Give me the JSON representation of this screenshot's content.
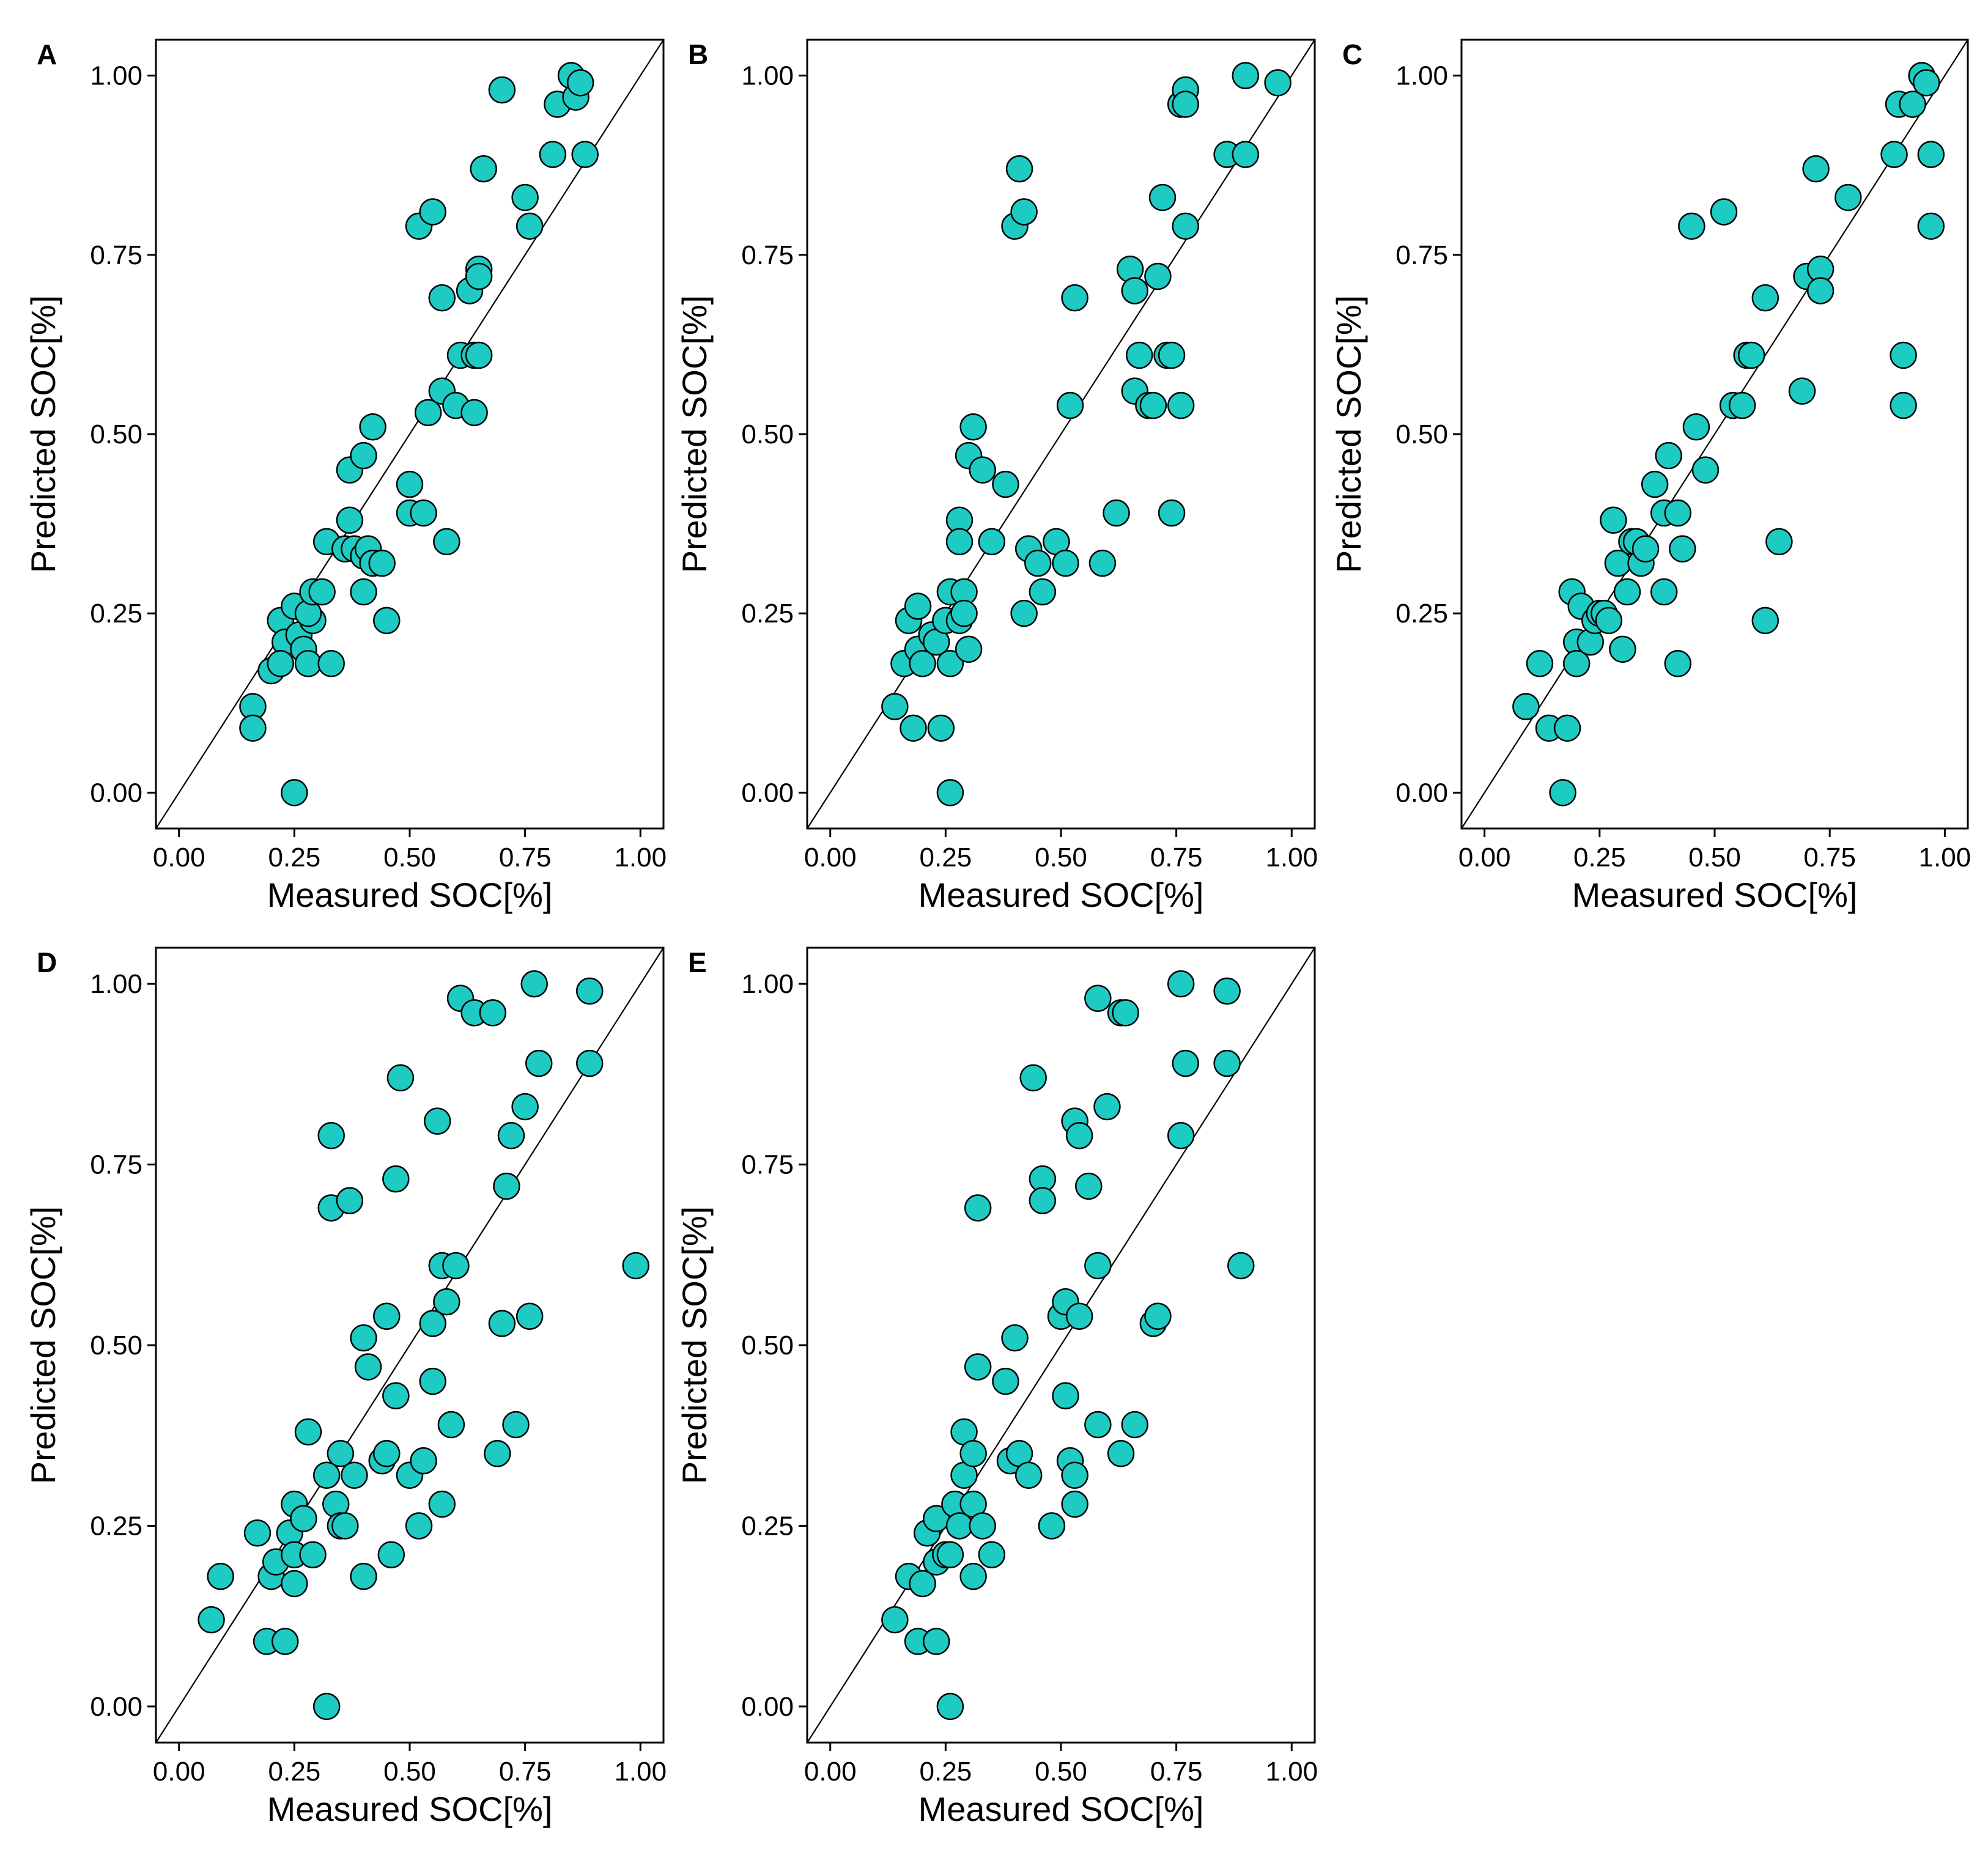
{
  "figure": {
    "point_fill": "#1ECBC3",
    "point_stroke": "#000000",
    "background": "#FFFFFF"
  },
  "chart_data": [
    {
      "type": "scatter",
      "panel_label": "A",
      "xlabel": "Measured SOC[%]",
      "ylabel": "Predicted SOC[%]",
      "xlim": [
        -0.05,
        1.05
      ],
      "ylim": [
        -0.05,
        1.05
      ],
      "xticks": [
        0.0,
        0.25,
        0.5,
        0.75,
        1.0
      ],
      "yticks": [
        0.0,
        0.25,
        0.5,
        0.75,
        1.0
      ],
      "xtick_labels": [
        "0.00",
        "0.25",
        "0.50",
        "0.75",
        "1.00"
      ],
      "ytick_labels": [
        "0.00",
        "0.25",
        "0.50",
        "0.75",
        "1.00"
      ],
      "reference_line": "y = x",
      "points": [
        [
          0.16,
          0.12
        ],
        [
          0.16,
          0.09
        ],
        [
          0.25,
          0.0
        ],
        [
          0.2,
          0.17
        ],
        [
          0.22,
          0.24
        ],
        [
          0.23,
          0.21
        ],
        [
          0.22,
          0.18
        ],
        [
          0.25,
          0.26
        ],
        [
          0.26,
          0.22
        ],
        [
          0.27,
          0.2
        ],
        [
          0.28,
          0.18
        ],
        [
          0.29,
          0.24
        ],
        [
          0.28,
          0.25
        ],
        [
          0.29,
          0.28
        ],
        [
          0.31,
          0.28
        ],
        [
          0.32,
          0.35
        ],
        [
          0.33,
          0.18
        ],
        [
          0.36,
          0.34
        ],
        [
          0.37,
          0.38
        ],
        [
          0.38,
          0.34
        ],
        [
          0.37,
          0.45
        ],
        [
          0.4,
          0.47
        ],
        [
          0.4,
          0.33
        ],
        [
          0.4,
          0.28
        ],
        [
          0.41,
          0.34
        ],
        [
          0.42,
          0.32
        ],
        [
          0.42,
          0.51
        ],
        [
          0.44,
          0.32
        ],
        [
          0.45,
          0.24
        ],
        [
          0.5,
          0.43
        ],
        [
          0.5,
          0.39
        ],
        [
          0.53,
          0.39
        ],
        [
          0.54,
          0.53
        ],
        [
          0.52,
          0.79
        ],
        [
          0.55,
          0.81
        ],
        [
          0.57,
          0.56
        ],
        [
          0.57,
          0.69
        ],
        [
          0.58,
          0.35
        ],
        [
          0.6,
          0.54
        ],
        [
          0.61,
          0.61
        ],
        [
          0.63,
          0.7
        ],
        [
          0.64,
          0.53
        ],
        [
          0.64,
          0.61
        ],
        [
          0.65,
          0.61
        ],
        [
          0.65,
          0.73
        ],
        [
          0.65,
          0.72
        ],
        [
          0.66,
          0.87
        ],
        [
          0.7,
          0.98
        ],
        [
          0.75,
          0.83
        ],
        [
          0.76,
          0.79
        ],
        [
          0.81,
          0.89
        ],
        [
          0.82,
          0.96
        ],
        [
          0.85,
          1.0
        ],
        [
          0.86,
          0.97
        ],
        [
          0.87,
          0.99
        ],
        [
          0.88,
          0.89
        ]
      ]
    },
    {
      "type": "scatter",
      "panel_label": "B",
      "xlabel": "Measured SOC[%]",
      "ylabel": "Predicted SOC[%]",
      "xlim": [
        -0.05,
        1.05
      ],
      "ylim": [
        -0.05,
        1.05
      ],
      "xticks": [
        0.0,
        0.25,
        0.5,
        0.75,
        1.0
      ],
      "yticks": [
        0.0,
        0.25,
        0.5,
        0.75,
        1.0
      ],
      "xtick_labels": [
        "0.00",
        "0.25",
        "0.50",
        "0.75",
        "1.00"
      ],
      "ytick_labels": [
        "0.00",
        "0.25",
        "0.50",
        "0.75",
        "1.00"
      ],
      "reference_line": "y = x",
      "points": [
        [
          0.14,
          0.12
        ],
        [
          0.16,
          0.18
        ],
        [
          0.17,
          0.24
        ],
        [
          0.18,
          0.09
        ],
        [
          0.19,
          0.26
        ],
        [
          0.19,
          0.2
        ],
        [
          0.2,
          0.18
        ],
        [
          0.22,
          0.22
        ],
        [
          0.23,
          0.21
        ],
        [
          0.24,
          0.09
        ],
        [
          0.25,
          0.24
        ],
        [
          0.26,
          0.28
        ],
        [
          0.26,
          0.18
        ],
        [
          0.26,
          0.0
        ],
        [
          0.28,
          0.38
        ],
        [
          0.28,
          0.35
        ],
        [
          0.28,
          0.24
        ],
        [
          0.29,
          0.28
        ],
        [
          0.29,
          0.25
        ],
        [
          0.3,
          0.2
        ],
        [
          0.3,
          0.47
        ],
        [
          0.31,
          0.51
        ],
        [
          0.33,
          0.45
        ],
        [
          0.35,
          0.35
        ],
        [
          0.38,
          0.43
        ],
        [
          0.4,
          0.79
        ],
        [
          0.41,
          0.87
        ],
        [
          0.42,
          0.81
        ],
        [
          0.42,
          0.25
        ],
        [
          0.43,
          0.34
        ],
        [
          0.45,
          0.32
        ],
        [
          0.46,
          0.28
        ],
        [
          0.49,
          0.35
        ],
        [
          0.51,
          0.32
        ],
        [
          0.52,
          0.54
        ],
        [
          0.53,
          0.69
        ],
        [
          0.59,
          0.32
        ],
        [
          0.62,
          0.39
        ],
        [
          0.65,
          0.73
        ],
        [
          0.66,
          0.7
        ],
        [
          0.66,
          0.56
        ],
        [
          0.67,
          0.61
        ],
        [
          0.69,
          0.54
        ],
        [
          0.7,
          0.54
        ],
        [
          0.71,
          0.72
        ],
        [
          0.72,
          0.83
        ],
        [
          0.73,
          0.61
        ],
        [
          0.74,
          0.61
        ],
        [
          0.74,
          0.39
        ],
        [
          0.76,
          0.54
        ],
        [
          0.76,
          0.96
        ],
        [
          0.77,
          0.98
        ],
        [
          0.77,
          0.79
        ],
        [
          0.86,
          0.89
        ],
        [
          0.9,
          1.0
        ],
        [
          0.9,
          0.89
        ],
        [
          0.97,
          0.99
        ],
        [
          0.77,
          0.96
        ]
      ]
    },
    {
      "type": "scatter",
      "panel_label": "C",
      "xlabel": "Measured SOC[%]",
      "ylabel": "Predicted SOC[%]",
      "xlim": [
        -0.05,
        1.05
      ],
      "ylim": [
        -0.05,
        1.05
      ],
      "xticks": [
        0.0,
        0.25,
        0.5,
        0.75,
        1.0
      ],
      "yticks": [
        0.0,
        0.25,
        0.5,
        0.75,
        1.0
      ],
      "xtick_labels": [
        "0.00",
        "0.25",
        "0.50",
        "0.75",
        "1.00"
      ],
      "ytick_labels": [
        "0.00",
        "0.25",
        "0.50",
        "0.75",
        "1.00"
      ],
      "reference_line": "y = x",
      "points": [
        [
          0.09,
          0.12
        ],
        [
          0.12,
          0.18
        ],
        [
          0.14,
          0.09
        ],
        [
          0.17,
          0.0
        ],
        [
          0.18,
          0.09
        ],
        [
          0.19,
          0.28
        ],
        [
          0.2,
          0.21
        ],
        [
          0.2,
          0.18
        ],
        [
          0.21,
          0.26
        ],
        [
          0.23,
          0.21
        ],
        [
          0.24,
          0.24
        ],
        [
          0.25,
          0.25
        ],
        [
          0.26,
          0.25
        ],
        [
          0.27,
          0.24
        ],
        [
          0.28,
          0.38
        ],
        [
          0.29,
          0.32
        ],
        [
          0.3,
          0.2
        ],
        [
          0.31,
          0.28
        ],
        [
          0.32,
          0.35
        ],
        [
          0.33,
          0.35
        ],
        [
          0.34,
          0.32
        ],
        [
          0.35,
          0.34
        ],
        [
          0.37,
          0.43
        ],
        [
          0.39,
          0.39
        ],
        [
          0.39,
          0.28
        ],
        [
          0.4,
          0.47
        ],
        [
          0.42,
          0.39
        ],
        [
          0.42,
          0.18
        ],
        [
          0.43,
          0.34
        ],
        [
          0.45,
          0.79
        ],
        [
          0.46,
          0.51
        ],
        [
          0.48,
          0.45
        ],
        [
          0.52,
          0.81
        ],
        [
          0.54,
          0.54
        ],
        [
          0.56,
          0.54
        ],
        [
          0.57,
          0.61
        ],
        [
          0.58,
          0.61
        ],
        [
          0.61,
          0.24
        ],
        [
          0.61,
          0.69
        ],
        [
          0.64,
          0.35
        ],
        [
          0.69,
          0.56
        ],
        [
          0.7,
          0.72
        ],
        [
          0.72,
          0.87
        ],
        [
          0.73,
          0.73
        ],
        [
          0.73,
          0.7
        ],
        [
          0.79,
          0.83
        ],
        [
          0.89,
          0.89
        ],
        [
          0.9,
          0.96
        ],
        [
          0.91,
          0.54
        ],
        [
          0.91,
          0.61
        ],
        [
          0.93,
          0.96
        ],
        [
          0.95,
          1.0
        ],
        [
          0.96,
          0.99
        ],
        [
          0.97,
          0.89
        ],
        [
          0.97,
          0.79
        ]
      ]
    },
    {
      "type": "scatter",
      "panel_label": "D",
      "xlabel": "Measured SOC[%]",
      "ylabel": "Predicted SOC[%]",
      "xlim": [
        -0.05,
        1.05
      ],
      "ylim": [
        -0.05,
        1.05
      ],
      "xticks": [
        0.0,
        0.25,
        0.5,
        0.75,
        1.0
      ],
      "yticks": [
        0.0,
        0.25,
        0.5,
        0.75,
        1.0
      ],
      "xtick_labels": [
        "0.00",
        "0.25",
        "0.50",
        "0.75",
        "1.00"
      ],
      "ytick_labels": [
        "0.00",
        "0.25",
        "0.50",
        "0.75",
        "1.00"
      ],
      "reference_line": "y = x",
      "points": [
        [
          0.07,
          0.12
        ],
        [
          0.09,
          0.18
        ],
        [
          0.17,
          0.24
        ],
        [
          0.19,
          0.09
        ],
        [
          0.2,
          0.18
        ],
        [
          0.21,
          0.2
        ],
        [
          0.23,
          0.09
        ],
        [
          0.24,
          0.24
        ],
        [
          0.25,
          0.21
        ],
        [
          0.25,
          0.28
        ],
        [
          0.25,
          0.17
        ],
        [
          0.27,
          0.26
        ],
        [
          0.28,
          0.38
        ],
        [
          0.29,
          0.21
        ],
        [
          0.32,
          0.0
        ],
        [
          0.32,
          0.32
        ],
        [
          0.33,
          0.79
        ],
        [
          0.33,
          0.69
        ],
        [
          0.34,
          0.28
        ],
        [
          0.35,
          0.35
        ],
        [
          0.35,
          0.25
        ],
        [
          0.36,
          0.25
        ],
        [
          0.37,
          0.7
        ],
        [
          0.38,
          0.32
        ],
        [
          0.4,
          0.51
        ],
        [
          0.41,
          0.47
        ],
        [
          0.4,
          0.18
        ],
        [
          0.44,
          0.34
        ],
        [
          0.45,
          0.35
        ],
        [
          0.45,
          0.54
        ],
        [
          0.46,
          0.21
        ],
        [
          0.47,
          0.43
        ],
        [
          0.47,
          0.73
        ],
        [
          0.48,
          0.87
        ],
        [
          0.5,
          0.32
        ],
        [
          0.52,
          0.25
        ],
        [
          0.53,
          0.34
        ],
        [
          0.55,
          0.53
        ],
        [
          0.55,
          0.45
        ],
        [
          0.56,
          0.81
        ],
        [
          0.57,
          0.61
        ],
        [
          0.57,
          0.28
        ],
        [
          0.58,
          0.56
        ],
        [
          0.59,
          0.39
        ],
        [
          0.6,
          0.61
        ],
        [
          0.61,
          0.98
        ],
        [
          0.64,
          0.96
        ],
        [
          0.68,
          0.96
        ],
        [
          0.69,
          0.35
        ],
        [
          0.7,
          0.53
        ],
        [
          0.71,
          0.72
        ],
        [
          0.72,
          0.79
        ],
        [
          0.73,
          0.39
        ],
        [
          0.75,
          0.83
        ],
        [
          0.76,
          0.54
        ],
        [
          0.77,
          1.0
        ],
        [
          0.78,
          0.89
        ],
        [
          0.89,
          0.99
        ],
        [
          0.89,
          0.89
        ],
        [
          0.99,
          0.61
        ]
      ]
    },
    {
      "type": "scatter",
      "panel_label": "E",
      "xlabel": "Measured SOC[%]",
      "ylabel": "Predicted SOC[%]",
      "xlim": [
        -0.05,
        1.05
      ],
      "ylim": [
        -0.05,
        1.05
      ],
      "xticks": [
        0.0,
        0.25,
        0.5,
        0.75,
        1.0
      ],
      "yticks": [
        0.0,
        0.25,
        0.5,
        0.75,
        1.0
      ],
      "xtick_labels": [
        "0.00",
        "0.25",
        "0.50",
        "0.75",
        "1.00"
      ],
      "ytick_labels": [
        "0.00",
        "0.25",
        "0.50",
        "0.75",
        "1.00"
      ],
      "reference_line": "y = x",
      "points": [
        [
          0.14,
          0.12
        ],
        [
          0.17,
          0.18
        ],
        [
          0.19,
          0.09
        ],
        [
          0.2,
          0.17
        ],
        [
          0.21,
          0.24
        ],
        [
          0.23,
          0.09
        ],
        [
          0.23,
          0.2
        ],
        [
          0.23,
          0.26
        ],
        [
          0.25,
          0.21
        ],
        [
          0.26,
          0.21
        ],
        [
          0.26,
          0.0
        ],
        [
          0.27,
          0.28
        ],
        [
          0.28,
          0.25
        ],
        [
          0.29,
          0.38
        ],
        [
          0.29,
          0.32
        ],
        [
          0.31,
          0.35
        ],
        [
          0.31,
          0.18
        ],
        [
          0.31,
          0.28
        ],
        [
          0.32,
          0.47
        ],
        [
          0.32,
          0.69
        ],
        [
          0.33,
          0.25
        ],
        [
          0.35,
          0.21
        ],
        [
          0.38,
          0.45
        ],
        [
          0.39,
          0.34
        ],
        [
          0.4,
          0.51
        ],
        [
          0.41,
          0.35
        ],
        [
          0.43,
          0.32
        ],
        [
          0.44,
          0.87
        ],
        [
          0.46,
          0.73
        ],
        [
          0.46,
          0.7
        ],
        [
          0.48,
          0.25
        ],
        [
          0.5,
          0.54
        ],
        [
          0.51,
          0.56
        ],
        [
          0.51,
          0.43
        ],
        [
          0.52,
          0.34
        ],
        [
          0.53,
          0.32
        ],
        [
          0.53,
          0.28
        ],
        [
          0.53,
          0.81
        ],
        [
          0.54,
          0.79
        ],
        [
          0.54,
          0.54
        ],
        [
          0.56,
          0.72
        ],
        [
          0.58,
          0.61
        ],
        [
          0.58,
          0.39
        ],
        [
          0.58,
          0.98
        ],
        [
          0.6,
          0.83
        ],
        [
          0.63,
          0.96
        ],
        [
          0.64,
          0.96
        ],
        [
          0.63,
          0.35
        ],
        [
          0.66,
          0.39
        ],
        [
          0.7,
          0.53
        ],
        [
          0.71,
          0.54
        ],
        [
          0.76,
          1.0
        ],
        [
          0.76,
          0.79
        ],
        [
          0.77,
          0.89
        ],
        [
          0.86,
          0.99
        ],
        [
          0.86,
          0.89
        ],
        [
          0.89,
          0.61
        ]
      ]
    }
  ]
}
